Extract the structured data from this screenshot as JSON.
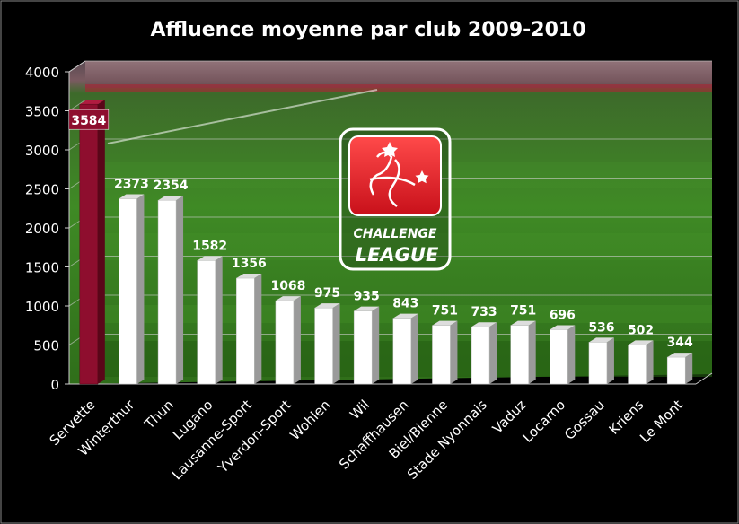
{
  "chart_data": {
    "type": "bar",
    "title": "Affluence  moyenne par club 2009-2010",
    "xlabel": "",
    "ylabel": "",
    "ylim": [
      0,
      4000
    ],
    "yticks": [
      "0",
      "500",
      "1000",
      "1500",
      "2000",
      "2500",
      "3000",
      "3500",
      "4000"
    ],
    "categories": [
      "Servette",
      "Winterthur",
      "Thun",
      "Lugano",
      "Lausanne-Sport",
      "Yverdon-Sport",
      "Wohlen",
      "Wil",
      "Schaffhausen",
      "Biel/Bienne",
      "Stade Nyonnais",
      "Vaduz",
      "Locarno",
      "Gossau",
      "Kriens",
      "Le Mont"
    ],
    "values": [
      3584,
      2373,
      2354,
      1582,
      1356,
      1068,
      975,
      935,
      843,
      751,
      733,
      751,
      696,
      536,
      502,
      344
    ],
    "value_labels": [
      "3584",
      "2373",
      "2354",
      "1582",
      "1356",
      "1068",
      "975",
      "935",
      "843",
      "751",
      "733",
      "751",
      "696",
      "536",
      "502",
      "344"
    ],
    "highlight_index": 0,
    "grid": true,
    "legend": "none",
    "colors": {
      "background": "#000000",
      "bar": "#ffffff",
      "bar_side": "#9a9a9a",
      "highlight_bar": "#8e0e2e",
      "highlight_side": "#5a0619",
      "highlight_label_bg": "#8e0e2e",
      "text": "#ffffff",
      "value_text": "#ffffff"
    }
  },
  "logo": {
    "line1": "CHALLENGE",
    "line2": "LEAGUE",
    "icon": "challenge-league-emblem-icon"
  }
}
